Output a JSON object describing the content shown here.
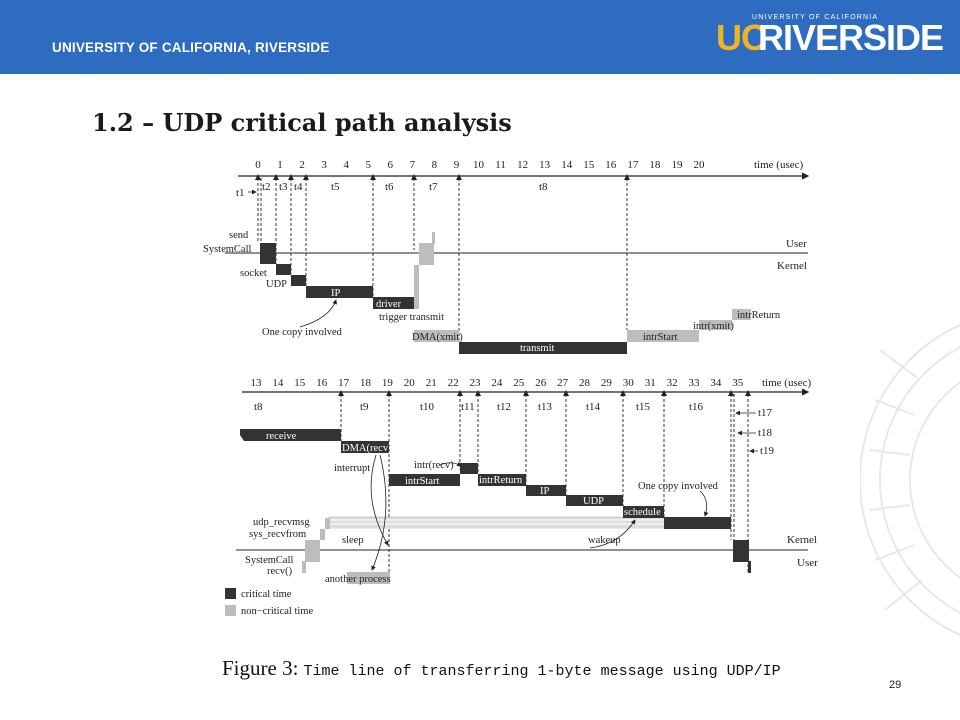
{
  "header": {
    "university_name": "UNIVERSITY OF CALIFORNIA, RIVERSIDE",
    "logo_uc": "UC",
    "logo_riverside": "RIVERSIDE",
    "logo_subtitle": "UNIVERSITY OF CALIFORNIA"
  },
  "slide": {
    "title": "1.2 – UDP critical path analysis",
    "page_number": "29"
  },
  "caption": {
    "figure_label": "Figure 3:",
    "text": "Time line of transferring 1-byte message using UDP/IP"
  },
  "send_timeline": {
    "ticks": [
      "0",
      "1",
      "2",
      "3",
      "4",
      "5",
      "6",
      "7",
      "8",
      "9",
      "10",
      "11",
      "12",
      "13",
      "14",
      "15",
      "16",
      "17",
      "18",
      "19",
      "20"
    ],
    "axis_label": "time (usec)",
    "intervals": [
      "t1",
      "t2",
      "t3",
      "t4",
      "t5",
      "t6",
      "t7",
      "t8"
    ],
    "user_label": "User",
    "kernel_label": "Kernel",
    "labels": {
      "send": "send",
      "systemcall": "SystemCall",
      "socket": "socket",
      "udp": "UDP",
      "ip": "IP",
      "driver": "driver",
      "trigger_transmit": "trigger transmit",
      "one_copy": "One copy involved",
      "dma_xmit": "DMA(xmit)",
      "transmit": "transmit",
      "intr_start": "intrStart",
      "intr_xmit": "intr(xmit)",
      "intr_return": "intrReturn"
    }
  },
  "recv_timeline": {
    "ticks": [
      "13",
      "14",
      "15",
      "16",
      "17",
      "18",
      "19",
      "20",
      "21",
      "22",
      "23",
      "24",
      "25",
      "26",
      "27",
      "28",
      "29",
      "30",
      "31",
      "32",
      "33",
      "34",
      "35"
    ],
    "axis_label": "time (usec)",
    "intervals": [
      "t8",
      "t9",
      "t10",
      "t11",
      "t12",
      "t13",
      "t14",
      "t15",
      "t16",
      "t17",
      "t18",
      "t19"
    ],
    "kernel_label": "Kernel",
    "user_label": "User",
    "labels": {
      "receive": "receive",
      "dma_recv": "DMA(recv)",
      "interrupt": "interrupt",
      "intr_recv": "intr(recv)",
      "intr_start": "intrStart",
      "intr_return": "intrReturn",
      "ip": "IP",
      "udp": "UDP",
      "one_copy": "One copy involved",
      "schedule": "schedule",
      "udp_recvmsg": "udp_recvmsg",
      "sys_recvfrom": "sys_recvfrom",
      "sleep": "sleep",
      "wakeup": "wakeup",
      "systemcall": "SystemCall",
      "recv": "recv()",
      "another_process": "another process"
    }
  },
  "legend": {
    "critical": "critical time",
    "non_critical": "non−critical time"
  },
  "colors": {
    "banner": "#2d6cc0",
    "logo_gold": "#f0b323",
    "critical": "#333333",
    "non_critical": "#bdbdbd"
  }
}
